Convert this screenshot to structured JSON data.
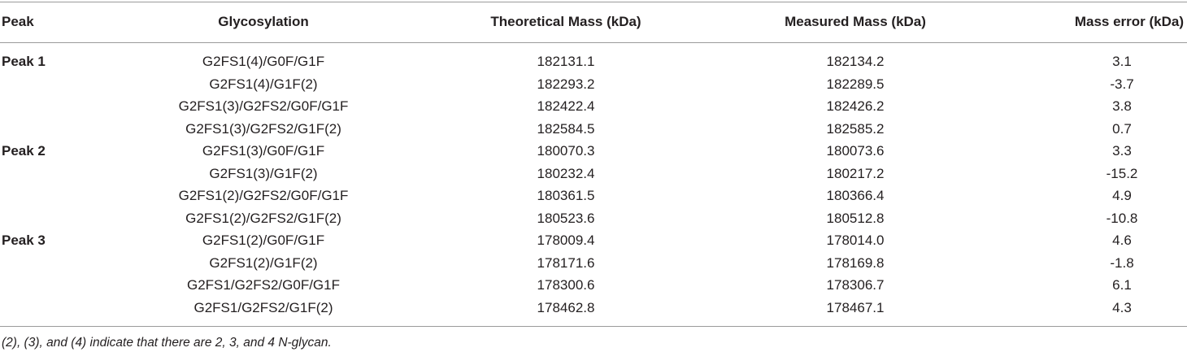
{
  "table": {
    "header": [
      "Peak",
      "Glycosylation",
      "Theoretical Mass (kDa)",
      "Measured Mass (kDa)",
      "Mass error (kDa)"
    ],
    "groups": [
      {
        "peak": "Peak 1",
        "rows": [
          [
            "G2FS1(4)/G0F/G1F",
            "182131.1",
            "182134.2",
            "3.1"
          ],
          [
            "G2FS1(4)/G1F(2)",
            "182293.2",
            "182289.5",
            "-3.7"
          ],
          [
            "G2FS1(3)/G2FS2/G0F/G1F",
            "182422.4",
            "182426.2",
            "3.8"
          ],
          [
            "G2FS1(3)/G2FS2/G1F(2)",
            "182584.5",
            "182585.2",
            "0.7"
          ]
        ]
      },
      {
        "peak": "Peak 2",
        "rows": [
          [
            "G2FS1(3)/G0F/G1F",
            "180070.3",
            "180073.6",
            "3.3"
          ],
          [
            "G2FS1(3)/G1F(2)",
            "180232.4",
            "180217.2",
            "-15.2"
          ],
          [
            "G2FS1(2)/G2FS2/G0F/G1F",
            "180361.5",
            "180366.4",
            "4.9"
          ],
          [
            "G2FS1(2)/G2FS2/G1F(2)",
            "180523.6",
            "180512.8",
            "-10.8"
          ]
        ]
      },
      {
        "peak": "Peak 3",
        "rows": [
          [
            "G2FS1(2)/G0F/G1F",
            "178009.4",
            "178014.0",
            "4.6"
          ],
          [
            "G2FS1(2)/G1F(2)",
            "178171.6",
            "178169.8",
            "-1.8"
          ],
          [
            "G2FS1/G2FS2/G0F/G1F",
            "178300.6",
            "178306.7",
            "6.1"
          ],
          [
            "G2FS1/G2FS2/G1F(2)",
            "178462.8",
            "178467.1",
            "4.3"
          ]
        ]
      }
    ],
    "footnote": "(2), (3), and (4) indicate that there are 2, 3, and 4 N-glycan."
  }
}
